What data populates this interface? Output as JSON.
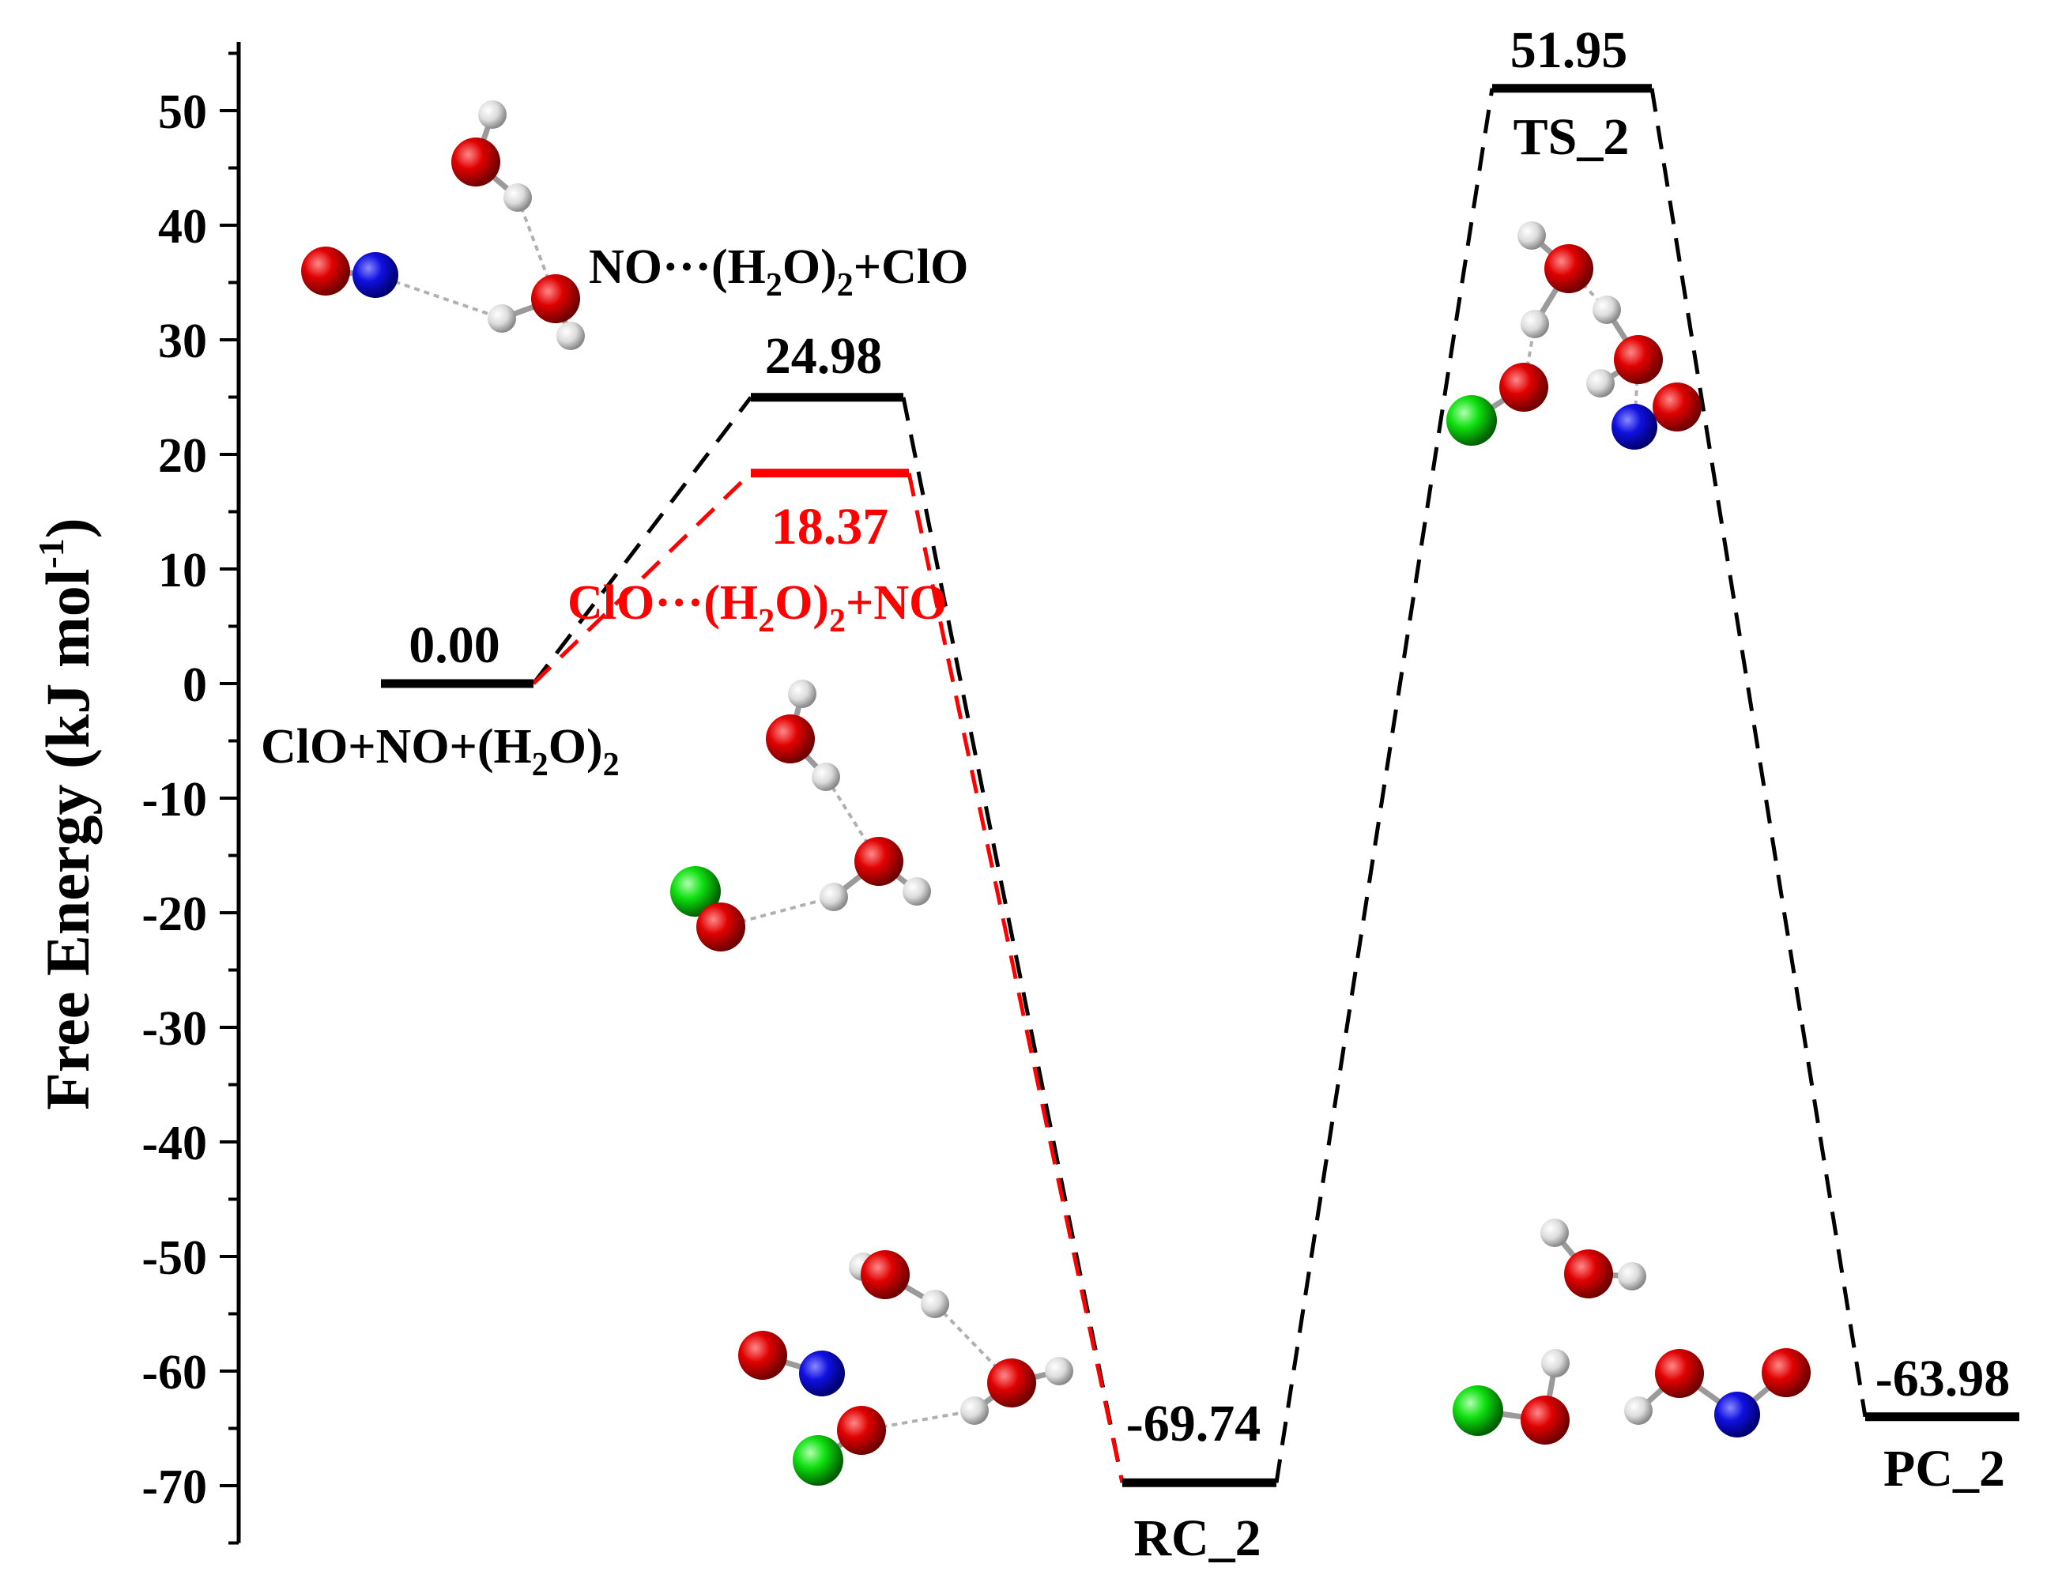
{
  "chart_data": {
    "type": "energy-profile",
    "ylabel": "Free Energy (kJ mol⁻¹)",
    "ylabel_main": "Free Energy (kJ mol",
    "ylabel_sup": "-1",
    "ylabel_tail": ")",
    "ylim": [
      -76,
      56
    ],
    "yticks": [
      -70,
      -60,
      -50,
      -40,
      -30,
      -20,
      -10,
      0,
      10,
      20,
      30,
      40,
      50
    ],
    "ytick_labels": [
      "-70",
      "-60",
      "-50",
      "-40",
      "-30",
      "-20",
      "-10",
      "0",
      "10",
      "20",
      "30",
      "40",
      "50"
    ],
    "levels": [
      {
        "id": "start",
        "value": 0.0,
        "value_label": "0.00",
        "name": "ClO+NO+(H2O)2",
        "color": "#000000"
      },
      {
        "id": "complex_black",
        "value": 24.98,
        "value_label": "24.98",
        "name": "NO···(H2O)2+ClO",
        "color": "#000000"
      },
      {
        "id": "complex_red",
        "value": 18.37,
        "value_label": "18.37",
        "name": "ClO···(H2O)2+NO",
        "color": "#ff0000"
      },
      {
        "id": "rc2",
        "value": -69.74,
        "value_label": "-69.74",
        "name": "RC_2",
        "color": "#000000"
      },
      {
        "id": "ts2",
        "value": 51.95,
        "value_label": "51.95",
        "name": "TS_2",
        "color": "#000000"
      },
      {
        "id": "pc2",
        "value": -63.98,
        "value_label": "-63.98",
        "name": "PC_2",
        "color": "#000000"
      }
    ],
    "paths": [
      {
        "color": "#000000",
        "sequence": [
          "start",
          "complex_black",
          "rc2",
          "ts2",
          "pc2"
        ]
      },
      {
        "color": "#ff0000",
        "sequence": [
          "start",
          "complex_red",
          "rc2"
        ]
      }
    ],
    "label_parts": {
      "start": {
        "a": "ClO+NO+(H",
        "sub": "2",
        "b": "O)",
        "sub2": "2",
        "c": ""
      },
      "complex_black": {
        "a": "NO···(H",
        "sub": "2",
        "b": "O)",
        "sub2": "2",
        "c": "+ClO"
      },
      "complex_red": {
        "a": "ClO···(H",
        "sub": "2",
        "b": "O)",
        "sub2": "2",
        "c": "+NO"
      }
    },
    "atom_colors": {
      "O": "#e00000",
      "N": "#1010e0",
      "H": "#e8e8e8",
      "Cl": "#10e010"
    }
  }
}
